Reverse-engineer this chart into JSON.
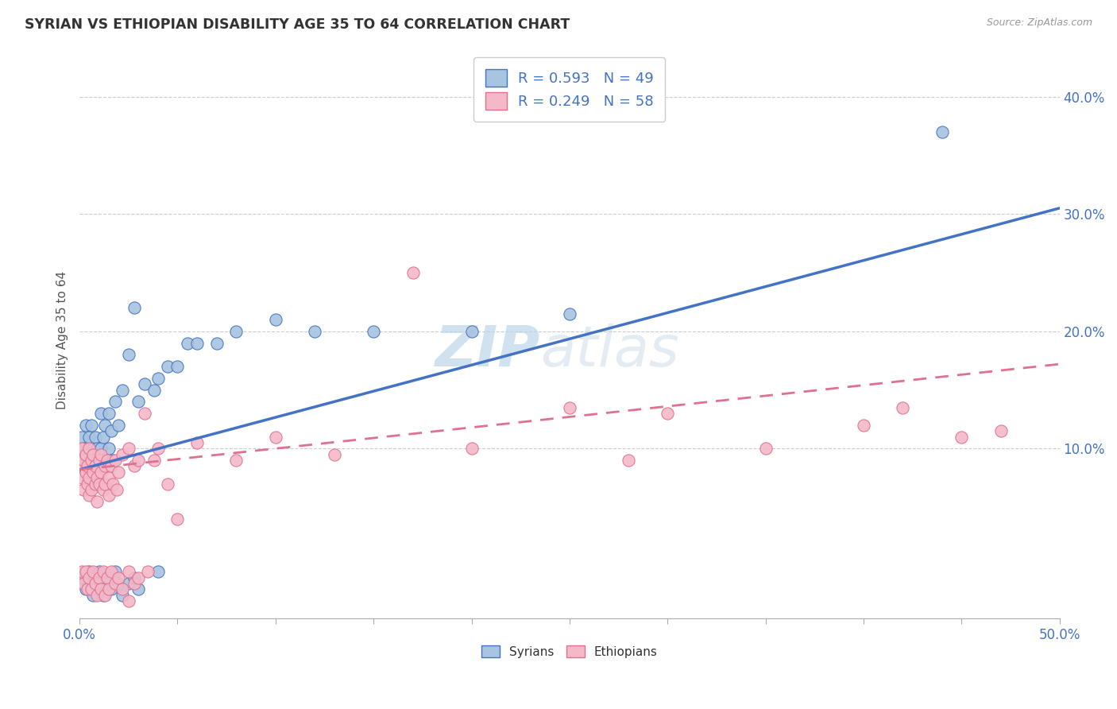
{
  "title": "SYRIAN VS ETHIOPIAN DISABILITY AGE 35 TO 64 CORRELATION CHART",
  "source": "Source: ZipAtlas.com",
  "ylabel": "Disability Age 35 to 64",
  "xlim": [
    0.0,
    0.5
  ],
  "ylim": [
    -0.045,
    0.43
  ],
  "yticks": [
    0.1,
    0.2,
    0.3,
    0.4
  ],
  "ytick_labels": [
    "10.0%",
    "20.0%",
    "30.0%",
    "40.0%"
  ],
  "xticks": [
    0.0,
    0.05,
    0.1,
    0.15,
    0.2,
    0.25,
    0.3,
    0.35,
    0.4,
    0.45,
    0.5
  ],
  "xtick_labels": [
    "0.0%",
    "",
    "",
    "",
    "",
    "",
    "",
    "",
    "",
    "",
    "50.0%"
  ],
  "syrian_color": "#a8c4e0",
  "ethiopian_color": "#f4b8c8",
  "syrian_line_color": "#4472c4",
  "ethiopian_line_color": "#e07090",
  "legend_text_color": "#4472c4",
  "R_syrian": 0.593,
  "N_syrian": 49,
  "R_ethiopian": 0.249,
  "N_ethiopian": 58,
  "watermark_zip": "ZIP",
  "watermark_atlas": "atlas",
  "syrian_line_x0": 0.0,
  "syrian_line_y0": 0.082,
  "syrian_line_x1": 0.5,
  "syrian_line_y1": 0.305,
  "ethiopian_line_x0": 0.0,
  "ethiopian_line_y0": 0.082,
  "ethiopian_line_x1": 0.5,
  "ethiopian_line_y1": 0.172,
  "syrian_scatter_x": [
    0.0,
    0.001,
    0.002,
    0.003,
    0.003,
    0.004,
    0.004,
    0.005,
    0.005,
    0.006,
    0.006,
    0.007,
    0.007,
    0.008,
    0.008,
    0.009,
    0.009,
    0.01,
    0.01,
    0.011,
    0.011,
    0.012,
    0.013,
    0.014,
    0.015,
    0.015,
    0.016,
    0.017,
    0.018,
    0.02,
    0.022,
    0.025,
    0.028,
    0.03,
    0.033,
    0.038,
    0.04,
    0.045,
    0.05,
    0.055,
    0.06,
    0.07,
    0.08,
    0.1,
    0.12,
    0.15,
    0.2,
    0.25,
    0.44
  ],
  "syrian_scatter_y": [
    0.09,
    0.11,
    0.1,
    0.08,
    0.12,
    0.1,
    0.075,
    0.09,
    0.11,
    0.08,
    0.12,
    0.1,
    0.085,
    0.09,
    0.11,
    0.08,
    0.1,
    0.09,
    0.07,
    0.1,
    0.13,
    0.11,
    0.12,
    0.09,
    0.1,
    0.13,
    0.115,
    0.09,
    0.14,
    0.12,
    0.15,
    0.18,
    0.22,
    0.14,
    0.155,
    0.15,
    0.16,
    0.17,
    0.17,
    0.19,
    0.19,
    0.19,
    0.2,
    0.21,
    0.2,
    0.2,
    0.2,
    0.215,
    0.37
  ],
  "ethiopian_scatter_x": [
    0.0,
    0.001,
    0.001,
    0.002,
    0.002,
    0.003,
    0.003,
    0.004,
    0.004,
    0.005,
    0.005,
    0.005,
    0.006,
    0.006,
    0.007,
    0.007,
    0.008,
    0.008,
    0.009,
    0.009,
    0.01,
    0.01,
    0.011,
    0.011,
    0.012,
    0.013,
    0.013,
    0.014,
    0.015,
    0.015,
    0.016,
    0.017,
    0.018,
    0.019,
    0.02,
    0.022,
    0.025,
    0.028,
    0.03,
    0.033,
    0.038,
    0.04,
    0.045,
    0.05,
    0.06,
    0.08,
    0.1,
    0.13,
    0.17,
    0.2,
    0.25,
    0.28,
    0.3,
    0.35,
    0.4,
    0.42,
    0.45,
    0.47
  ],
  "ethiopian_scatter_y": [
    0.085,
    0.1,
    0.075,
    0.09,
    0.065,
    0.08,
    0.095,
    0.07,
    0.085,
    0.1,
    0.075,
    0.06,
    0.09,
    0.065,
    0.08,
    0.095,
    0.07,
    0.085,
    0.075,
    0.055,
    0.09,
    0.07,
    0.08,
    0.095,
    0.065,
    0.085,
    0.07,
    0.09,
    0.075,
    0.06,
    0.085,
    0.07,
    0.09,
    0.065,
    0.08,
    0.095,
    0.1,
    0.085,
    0.09,
    0.13,
    0.09,
    0.1,
    0.07,
    0.04,
    0.105,
    0.09,
    0.11,
    0.095,
    0.25,
    0.1,
    0.135,
    0.09,
    0.13,
    0.1,
    0.12,
    0.135,
    0.11,
    0.115
  ],
  "syrian_scatter_below_x": [
    0.001,
    0.003,
    0.005,
    0.006,
    0.007,
    0.008,
    0.009,
    0.01,
    0.011,
    0.012,
    0.013,
    0.015,
    0.016,
    0.018,
    0.02,
    0.022,
    0.025,
    0.028,
    0.03,
    0.04
  ],
  "syrian_scatter_below_y": [
    -0.01,
    -0.02,
    -0.005,
    -0.015,
    -0.025,
    -0.01,
    -0.02,
    -0.005,
    -0.015,
    -0.025,
    -0.015,
    -0.01,
    -0.02,
    -0.005,
    -0.015,
    -0.025,
    -0.015,
    -0.01,
    -0.02,
    -0.005
  ],
  "ethiopian_scatter_below_x": [
    0.001,
    0.002,
    0.003,
    0.004,
    0.005,
    0.006,
    0.007,
    0.008,
    0.009,
    0.01,
    0.011,
    0.012,
    0.013,
    0.014,
    0.015,
    0.016,
    0.018,
    0.02,
    0.022,
    0.025,
    0.028,
    0.03,
    0.025,
    0.035
  ],
  "ethiopian_scatter_below_y": [
    -0.005,
    -0.015,
    -0.005,
    -0.02,
    -0.01,
    -0.02,
    -0.005,
    -0.015,
    -0.025,
    -0.01,
    -0.02,
    -0.005,
    -0.025,
    -0.01,
    -0.02,
    -0.005,
    -0.015,
    -0.01,
    -0.02,
    -0.005,
    -0.015,
    -0.01,
    -0.03,
    -0.005
  ]
}
